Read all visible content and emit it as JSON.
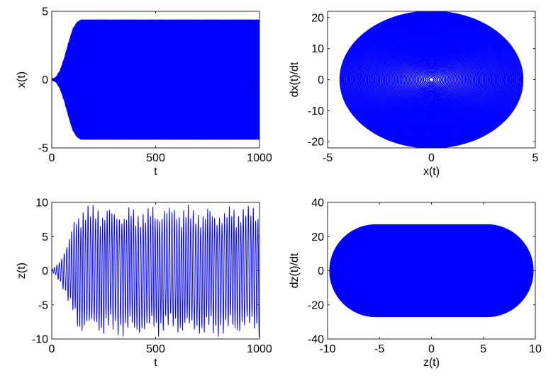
{
  "chart_data": [
    {
      "type": "line",
      "panel": "top-left",
      "xlabel": "t",
      "ylabel": "x(t)",
      "xlim": [
        0,
        1000
      ],
      "ylim": [
        -5,
        5
      ],
      "xticks": [
        "0",
        "500",
        "1000"
      ],
      "yticks": [
        "-5",
        "0",
        "5"
      ],
      "color": "#0000ff",
      "grid": false,
      "series": [
        {
          "description_points": {
            "t": [
              0,
              20,
              40,
              60,
              80,
              100,
              120,
              140,
              1000
            ],
            "envelope": [
              0.05,
              0.2,
              0.7,
              1.6,
              2.7,
              3.7,
              4.2,
              4.4,
              4.4
            ]
          }
        }
      ]
    },
    {
      "type": "line",
      "panel": "top-right",
      "xlabel": "x(t)",
      "ylabel": "dx(t)/dt",
      "xlim": [
        -5,
        5
      ],
      "ylim": [
        -22,
        22
      ],
      "xticks": [
        "-5",
        "0",
        "5"
      ],
      "yticks": [
        "-20",
        "-10",
        "0",
        "10",
        "20"
      ],
      "color": "#0000ff",
      "grid": false,
      "series": [
        {
          "description_points": {
            "max_x": 4.4,
            "max_dxdt": 22
          }
        }
      ]
    },
    {
      "type": "line",
      "panel": "bottom-left",
      "xlabel": "t",
      "ylabel": "z(t)",
      "xlim": [
        0,
        1000
      ],
      "ylim": [
        -10,
        10
      ],
      "xticks": [
        "0",
        "500",
        "1000"
      ],
      "yticks": [
        "-10",
        "-5",
        "0",
        "5",
        "10"
      ],
      "color": "#0000ff",
      "grid": false,
      "series": [
        {
          "description_points": {
            "t": [
              0,
              20,
              40,
              60,
              80,
              100,
              120,
              140,
              1000
            ],
            "envelope": [
              0.2,
              0.8,
              1.8,
              3.2,
              5.0,
              7.0,
              8.8,
              9.8,
              9.8
            ]
          }
        }
      ]
    },
    {
      "type": "line",
      "panel": "bottom-right",
      "xlabel": "z(t)",
      "ylabel": "dz(t)/dt",
      "xlim": [
        -10,
        10
      ],
      "ylim": [
        -40,
        40
      ],
      "xticks": [
        "-10",
        "-5",
        "0",
        "5",
        "10"
      ],
      "yticks": [
        "-40",
        "-20",
        "0",
        "20",
        "40"
      ],
      "color": "#0000ff",
      "grid": false,
      "series": [
        {
          "description_points": {
            "max_z": 9.8,
            "max_dzdt": 27
          }
        }
      ]
    }
  ]
}
